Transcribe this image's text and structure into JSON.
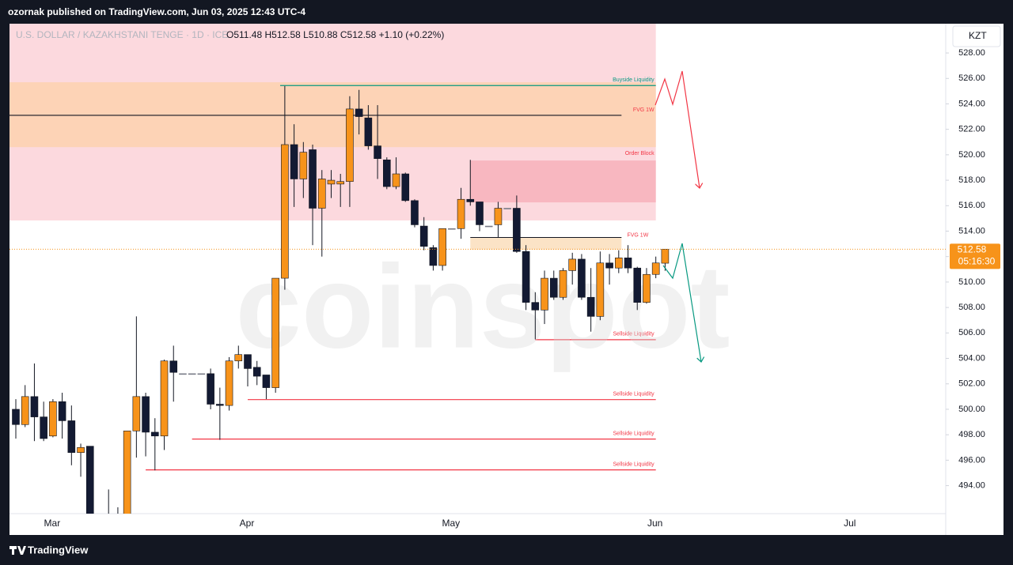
{
  "header": {
    "published": "ozornak published on TradingView.com, Jun 03, 2025 12:43 UTC-4",
    "brand": "TradingView"
  },
  "chart_data": {
    "type": "candlestick",
    "symbol": "U.S. DOLLAR / KAZAKHSTANI TENGE · 1D · ICE",
    "ohlc_legend": "O511.48 H512.58 L510.88 C512.58 +1.10 (+0.22%)",
    "currency": "KZT",
    "countdown": "05:16:30",
    "watermark": "coinspot",
    "categories": [
      null,
      null,
      null,
      null,
      "Mar",
      null,
      null,
      null,
      null,
      null,
      null,
      null,
      null,
      null,
      null,
      null,
      null,
      null,
      null,
      null,
      null,
      null,
      null,
      null,
      null,
      "Apr",
      null,
      null,
      null,
      null,
      null,
      null,
      null,
      null,
      null,
      null,
      null,
      null,
      null,
      null,
      null,
      null,
      null,
      null,
      null,
      null,
      null,
      "May",
      null,
      null,
      null,
      null,
      null,
      null,
      null,
      null,
      null,
      null,
      null,
      null,
      null,
      null,
      null,
      null,
      null,
      null,
      null,
      null,
      null,
      "Jun",
      null,
      null,
      null,
      null,
      null,
      null,
      null,
      null,
      null,
      null,
      null,
      null,
      null,
      null,
      null,
      null,
      null,
      null,
      null,
      null,
      "Jul",
      null,
      null,
      null,
      null,
      null,
      null,
      null,
      null,
      null
    ],
    "open": [
      500.0,
      498.8,
      501.0,
      499.4,
      497.9,
      500.6,
      499.1,
      496.6,
      497.1,
      491.5,
      490.5,
      491.0,
      491.6,
      498.3,
      501.0,
      498.2,
      497.9,
      503.8,
      502.8,
      502.8,
      502.8,
      502.8,
      500.4,
      500.3,
      503.8,
      504.3,
      503.3,
      502.7,
      501.7,
      510.3,
      520.8,
      518.1,
      520.4,
      515.8,
      517.7,
      517.7,
      517.9,
      523.6,
      522.9,
      520.7,
      519.6,
      517.5,
      518.5,
      516.4,
      514.4,
      512.7,
      511.3,
      514.2,
      514.2,
      516.5,
      516.3,
      514.4,
      514.5,
      515.8,
      515.8,
      512.4,
      508.4,
      507.8,
      510.3,
      508.8,
      510.9,
      511.8,
      508.8,
      507.3,
      511.5,
      511.1,
      511.9,
      511.1,
      508.4,
      510.6,
      511.48,
      null,
      null,
      null,
      null,
      null,
      null,
      null,
      null,
      null,
      null,
      null,
      null,
      null,
      null,
      null,
      null,
      null,
      null,
      null,
      null,
      null,
      null,
      null,
      null,
      null,
      null,
      null,
      null,
      null
    ],
    "high": [
      500.8,
      501.9,
      503.6,
      500.6,
      500.8,
      501.3,
      500.3,
      497.3,
      497.1,
      491.7,
      493.7,
      492.3,
      498.3,
      507.3,
      501.3,
      499.3,
      503.9,
      505.0,
      502.8,
      502.8,
      502.8,
      503.2,
      501.7,
      504.1,
      505.0,
      504.3,
      503.8,
      502.7,
      510.3,
      525.4,
      522.4,
      521.0,
      520.8,
      518.8,
      518.8,
      518.5,
      524.6,
      525.1,
      523.9,
      523.9,
      519.8,
      519.8,
      518.6,
      516.5,
      515.1,
      512.9,
      514.2,
      514.2,
      517.4,
      519.6,
      516.3,
      514.4,
      516.3,
      515.8,
      516.8,
      512.9,
      509.2,
      510.9,
      510.9,
      511.1,
      512.3,
      512.2,
      511.1,
      512.4,
      512.2,
      512.5,
      512.9,
      511.2,
      511.1,
      512.0,
      512.58,
      null,
      null,
      null,
      null,
      null,
      null,
      null,
      null,
      null,
      null,
      null,
      null,
      null,
      null,
      null,
      null,
      null,
      null,
      null,
      null,
      null,
      null,
      null,
      null,
      null,
      null,
      null,
      null,
      null
    ],
    "low": [
      497.7,
      498.6,
      497.5,
      497.5,
      497.8,
      497.7,
      495.6,
      494.7,
      491.0,
      489.8,
      489.5,
      490.3,
      491.2,
      496.2,
      496.3,
      495.2,
      496.8,
      500.6,
      502.8,
      502.8,
      502.8,
      500.0,
      497.6,
      499.9,
      503.2,
      501.8,
      501.9,
      500.8,
      501.3,
      509.4,
      515.9,
      516.6,
      512.9,
      512.0,
      516.6,
      515.9,
      515.9,
      521.6,
      520.4,
      518.1,
      517.3,
      517.3,
      516.3,
      514.3,
      512.5,
      510.9,
      510.9,
      514.2,
      513.4,
      516.0,
      514.0,
      514.4,
      513.5,
      515.8,
      512.3,
      507.8,
      505.5,
      506.7,
      508.6,
      508.6,
      509.8,
      508.6,
      506.1,
      507.0,
      509.8,
      510.7,
      510.7,
      507.8,
      508.3,
      510.3,
      510.88,
      null,
      null,
      null,
      null,
      null,
      null,
      null,
      null,
      null,
      null,
      null,
      null,
      null,
      null,
      null,
      null,
      null,
      null,
      null,
      null,
      null,
      null,
      null,
      null,
      null,
      null,
      null,
      null,
      null
    ],
    "close": [
      498.8,
      501.0,
      499.4,
      497.7,
      500.6,
      499.1,
      496.6,
      497.0,
      491.5,
      490.5,
      491.0,
      491.6,
      498.3,
      501.0,
      498.2,
      497.9,
      503.8,
      502.9,
      502.8,
      502.8,
      502.8,
      500.4,
      500.3,
      503.8,
      504.3,
      503.2,
      502.6,
      501.7,
      510.3,
      520.8,
      518.1,
      520.2,
      515.8,
      518.1,
      518.0,
      517.9,
      523.6,
      523.0,
      520.7,
      519.7,
      517.5,
      518.5,
      516.4,
      514.5,
      512.8,
      511.3,
      514.2,
      514.2,
      516.5,
      516.3,
      514.5,
      514.4,
      515.8,
      515.8,
      512.4,
      508.4,
      507.8,
      510.3,
      508.8,
      510.9,
      511.8,
      508.8,
      507.3,
      511.5,
      511.1,
      511.9,
      511.1,
      508.4,
      510.6,
      511.5,
      512.58,
      null,
      null,
      null,
      null,
      null,
      null,
      null,
      null,
      null,
      null,
      null,
      null,
      null,
      null,
      null,
      null,
      null,
      null,
      null,
      null,
      null,
      null,
      null,
      null,
      null,
      null,
      null,
      null,
      null
    ],
    "up_color": "#f7931a",
    "down_color": "#131a33",
    "flat_color": "#787b86",
    "ylim": [
      491.8,
      530.3
    ],
    "yticks": [
      {
        "value": 494,
        "label": "494.00"
      },
      {
        "value": 496,
        "label": "496.00"
      },
      {
        "value": 498,
        "label": "498.00"
      },
      {
        "value": 500,
        "label": "500.00"
      },
      {
        "value": 502,
        "label": "502.00"
      },
      {
        "value": 504,
        "label": "504.00"
      },
      {
        "value": 506,
        "label": "506.00"
      },
      {
        "value": 508,
        "label": "508.00"
      },
      {
        "value": 510,
        "label": "510.00"
      },
      {
        "value": 512,
        "label": "512.00"
      },
      {
        "value": 514,
        "label": "514.00"
      },
      {
        "value": 516,
        "label": "516.00"
      },
      {
        "value": 518,
        "label": "518.00"
      },
      {
        "value": 520,
        "label": "520.00"
      },
      {
        "value": 522,
        "label": "522.00"
      },
      {
        "value": 524,
        "label": "524.00"
      },
      {
        "value": 526,
        "label": "526.00"
      },
      {
        "value": 528,
        "label": "528.00"
      }
    ],
    "zones": [
      {
        "top": 530.3,
        "bottom": 514.84,
        "color": "#fcd9de"
      },
      {
        "top": 525.7,
        "bottom": 520.6,
        "color": "#fdd3b6"
      },
      {
        "label": "Order Block",
        "top": 519.55,
        "bottom": 516.26,
        "color": "#f8b7c0"
      },
      {
        "label": "FVG 1W",
        "top": 513.5,
        "bottom": 512.54,
        "color": "#fbe3c6"
      }
    ],
    "lines": [
      {
        "label": "Buyside Liquidity",
        "value": 525.44,
        "color": "#089981"
      },
      {
        "label": "FVG 1W",
        "value": 523.1,
        "color": "#131722",
        "label_color": "#f23645"
      },
      {
        "label": "Sellside Liquidity",
        "value": 505.47,
        "color": "#f23645"
      },
      {
        "label": "Sellside Liquidity",
        "value": 500.76,
        "color": "#f23645"
      },
      {
        "label": "Sellside Liquidity",
        "value": 497.66,
        "color": "#f23645"
      },
      {
        "label": "Sellside Liquidity",
        "value": 495.24,
        "color": "#f23645"
      }
    ],
    "last_price_color": "#f7931a"
  }
}
